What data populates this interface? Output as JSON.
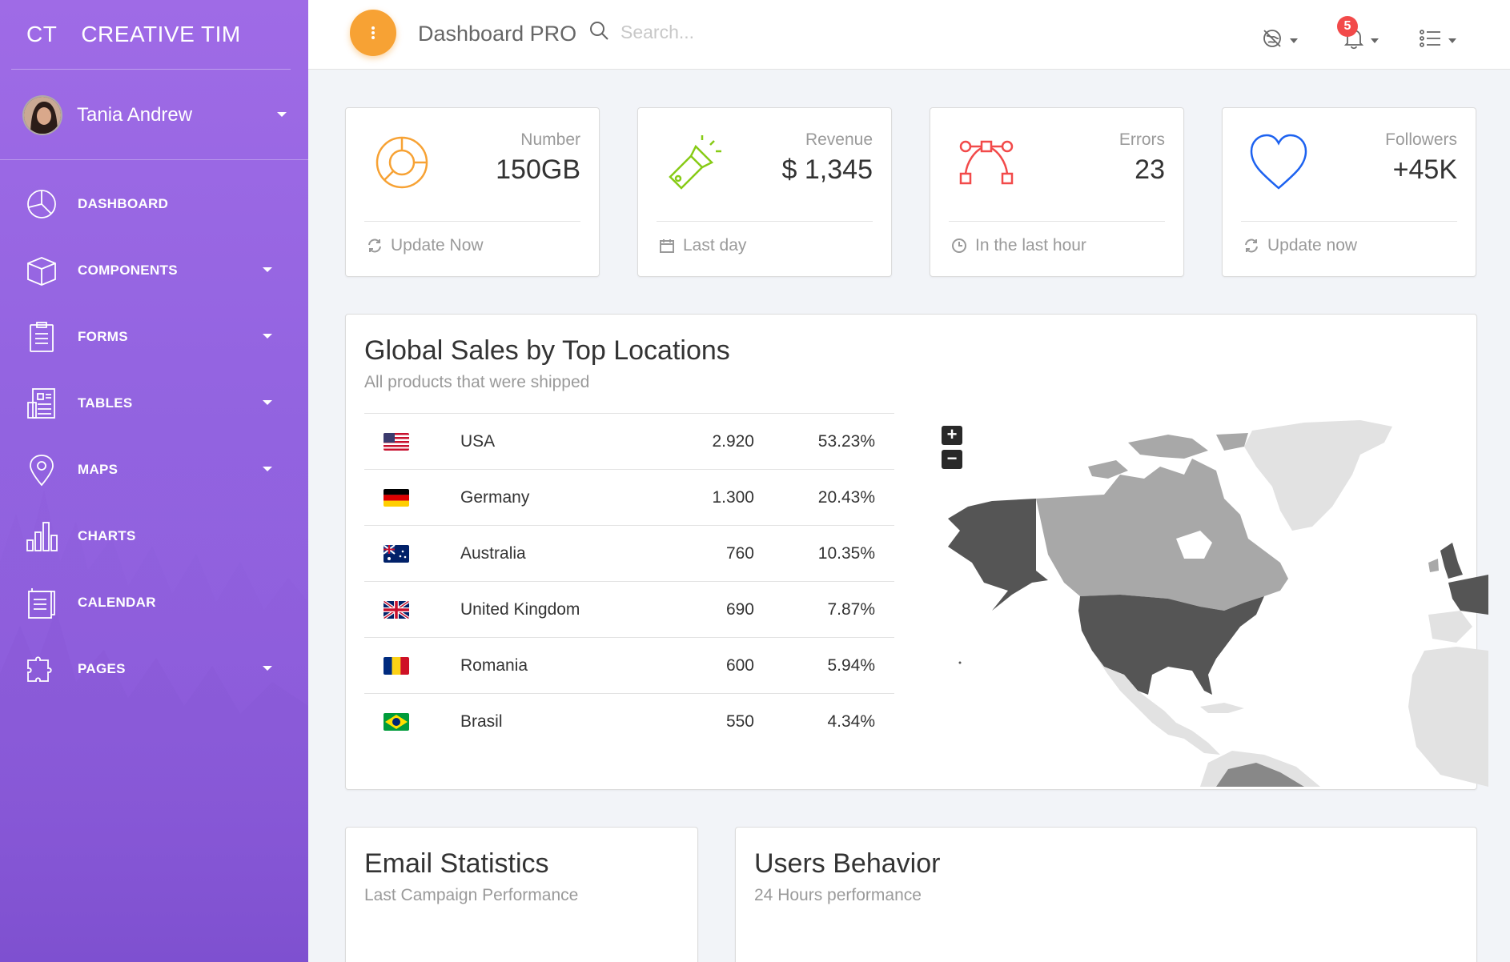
{
  "sidebar": {
    "logo_mini": "CT",
    "logo_text": "CREATIVE TIM",
    "user": {
      "name": "Tania Andrew"
    },
    "items": [
      {
        "label": "DASHBOARD",
        "icon": "pie-chart-icon",
        "has_caret": false
      },
      {
        "label": "COMPONENTS",
        "icon": "cube-icon",
        "has_caret": true
      },
      {
        "label": "FORMS",
        "icon": "clipboard-icon",
        "has_caret": true
      },
      {
        "label": "TABLES",
        "icon": "grid-table-icon",
        "has_caret": true
      },
      {
        "label": "MAPS",
        "icon": "map-pin-icon",
        "has_caret": true
      },
      {
        "label": "CHARTS",
        "icon": "bar-chart-icon",
        "has_caret": false
      },
      {
        "label": "CALENDAR",
        "icon": "notepad-icon",
        "has_caret": false
      },
      {
        "label": "PAGES",
        "icon": "puzzle-icon",
        "has_caret": true
      }
    ]
  },
  "header": {
    "brand": "Dashboard PRO",
    "search_placeholder": "Search...",
    "notifications_count": "5"
  },
  "stats": [
    {
      "category": "Number",
      "value": "150GB",
      "footer": "Update Now",
      "icon": "pie-icon",
      "footer_icon": "refresh-icon",
      "color": "#f7a234"
    },
    {
      "category": "Revenue",
      "value": "$ 1,345",
      "footer": "Last day",
      "icon": "flashlight-icon",
      "footer_icon": "calendar-icon",
      "color": "#87cb16"
    },
    {
      "category": "Errors",
      "value": "23",
      "footer": "In the last hour",
      "icon": "vector-path-icon",
      "footer_icon": "clock-icon",
      "color": "#f24a4a"
    },
    {
      "category": "Followers",
      "value": "+45K",
      "footer": "Update now",
      "icon": "heart-icon",
      "footer_icon": "refresh-icon",
      "color": "#1d62f0"
    }
  ],
  "global_sales": {
    "title": "Global Sales by Top Locations",
    "subtitle": "All products that were shipped",
    "rows": [
      {
        "country": "USA",
        "flag": "us",
        "sales": "2.920",
        "percent": "53.23%"
      },
      {
        "country": "Germany",
        "flag": "de",
        "sales": "1.300",
        "percent": "20.43%"
      },
      {
        "country": "Australia",
        "flag": "au",
        "sales": "760",
        "percent": "10.35%"
      },
      {
        "country": "United Kingdom",
        "flag": "gb",
        "sales": "690",
        "percent": "7.87%"
      },
      {
        "country": "Romania",
        "flag": "ro",
        "sales": "600",
        "percent": "5.94%"
      },
      {
        "country": "Brasil",
        "flag": "br",
        "sales": "550",
        "percent": "4.34%"
      }
    ],
    "map_zoom_in": "+",
    "map_zoom_out": "−"
  },
  "email_statistics": {
    "title": "Email Statistics",
    "subtitle": "Last Campaign Performance"
  },
  "users_behavior": {
    "title": "Users Behavior",
    "subtitle": "24 Hours performance"
  }
}
